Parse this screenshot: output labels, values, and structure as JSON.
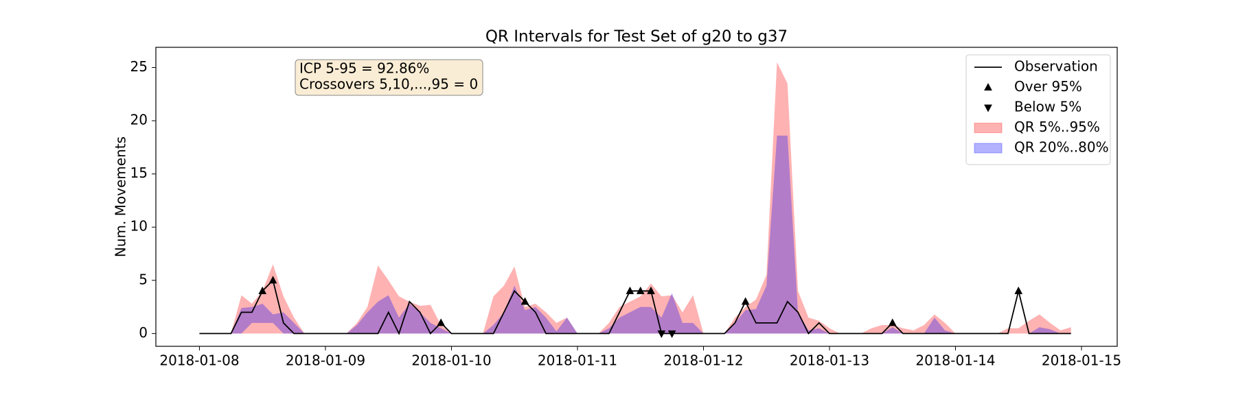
{
  "chart_data": {
    "type": "line",
    "title": "QR Intervals for Test Set of g20 to g37",
    "ylabel": "Num. Movements",
    "annotation": [
      "ICP 5-95 = 92.86%",
      "Crossovers 5,10,...,95 = 0"
    ],
    "legend": "upper right",
    "xlim": [
      -8.3,
      174.8
    ],
    "xticks": [
      {
        "value": 0,
        "label": "2018-01-08"
      },
      {
        "value": 24,
        "label": "2018-01-09"
      },
      {
        "value": 48,
        "label": "2018-01-10"
      },
      {
        "value": 72,
        "label": "2018-01-11"
      },
      {
        "value": 96,
        "label": "2018-01-12"
      },
      {
        "value": 120,
        "label": "2018-01-13"
      },
      {
        "value": 144,
        "label": "2018-01-14"
      },
      {
        "value": 168,
        "label": "2018-01-15"
      }
    ],
    "ylim": [
      -1.2,
      26.9
    ],
    "yticks": [
      0,
      5,
      10,
      15,
      20,
      25
    ],
    "x": [
      0,
      2,
      4,
      6,
      8,
      10,
      12,
      14,
      16,
      18,
      20,
      22,
      24,
      26,
      28,
      30,
      32,
      34,
      36,
      38,
      40,
      42,
      44,
      46,
      48,
      50,
      52,
      54,
      56,
      58,
      60,
      62,
      64,
      66,
      68,
      70,
      72,
      74,
      76,
      78,
      80,
      82,
      84,
      86,
      88,
      90,
      92,
      94,
      96,
      98,
      100,
      102,
      104,
      106,
      108,
      110,
      112,
      114,
      116,
      118,
      120,
      122,
      124,
      126,
      128,
      130,
      132,
      134,
      136,
      138,
      140,
      142,
      144,
      146,
      148,
      150,
      152,
      154,
      156,
      158,
      160,
      162,
      164,
      166
    ],
    "series": [
      {
        "name": "Observation",
        "kind": "line",
        "color": "#000000",
        "values": [
          0,
          0,
          0,
          0,
          2,
          2,
          4,
          5,
          1,
          0,
          0,
          0,
          0,
          0,
          0,
          0,
          0,
          0,
          2,
          0,
          3,
          2,
          0,
          1,
          0,
          0,
          0,
          0,
          0,
          2,
          4,
          3,
          2,
          0,
          0,
          0,
          0,
          0,
          0,
          0,
          2,
          4,
          4,
          4,
          0,
          0,
          0,
          0,
          0,
          0,
          0,
          1,
          3,
          1,
          1,
          1,
          3,
          2,
          0,
          1,
          0,
          0,
          0,
          0,
          0,
          0,
          1,
          0,
          0,
          0,
          0,
          0,
          0,
          0,
          0,
          0,
          0,
          0,
          4,
          0,
          0,
          0,
          0,
          0
        ]
      },
      {
        "name": "Over 95%",
        "kind": "marker",
        "marker": "up",
        "color": "#000000",
        "x": [
          12,
          14,
          46,
          62,
          82,
          84,
          86,
          104,
          132,
          156
        ],
        "values": [
          4,
          5,
          1,
          3,
          4,
          4,
          4,
          3,
          1,
          4
        ]
      },
      {
        "name": "Below 5%",
        "kind": "marker",
        "marker": "down",
        "color": "#000000",
        "x": [
          88,
          90
        ],
        "values": [
          0,
          0
        ]
      },
      {
        "name": "QR 5%..95%",
        "kind": "band",
        "color": "#ff0000",
        "opacity": 0.3,
        "lower": [
          0,
          0,
          0,
          0,
          0,
          0,
          0,
          0,
          0,
          0,
          0,
          0,
          0,
          0,
          0,
          0,
          0,
          0,
          0,
          0,
          0,
          0,
          0,
          0,
          0,
          0,
          0,
          0,
          0,
          0,
          0,
          0,
          0,
          0,
          0,
          0,
          0,
          0,
          0,
          0,
          0,
          0,
          0,
          0,
          0,
          0,
          0,
          0,
          0,
          0,
          0,
          0,
          0,
          0,
          0,
          0,
          0,
          0,
          0,
          0,
          0,
          0,
          0,
          0,
          0,
          0,
          0,
          0,
          0,
          0,
          0,
          0,
          0,
          0,
          0,
          0,
          0,
          0,
          0,
          0,
          0,
          0,
          0,
          0
        ],
        "upper": [
          0,
          0,
          0,
          0,
          3.6,
          2.8,
          4,
          6.5,
          3.5,
          1.5,
          0,
          0,
          0,
          0,
          0,
          1,
          2.5,
          6.4,
          5,
          3.5,
          3,
          2.6,
          2.7,
          0.8,
          0,
          0,
          0,
          0,
          3.5,
          4.5,
          6.3,
          2.5,
          2.8,
          2,
          1,
          1.5,
          0,
          0,
          0,
          1,
          2.5,
          3,
          3.5,
          4.7,
          3.5,
          3.6,
          2,
          3.6,
          0,
          0,
          0,
          1.5,
          2.5,
          3.2,
          5.5,
          25.5,
          23.5,
          4,
          1.5,
          1.2,
          0.5,
          0,
          0,
          0,
          0.5,
          0.8,
          0.8,
          0.5,
          0.3,
          0.8,
          1.8,
          1,
          0,
          0,
          0,
          0,
          0,
          0.5,
          0.5,
          1.2,
          1.8,
          1,
          0.3,
          0.6
        ]
      },
      {
        "name": "QR 20%..80%",
        "kind": "band",
        "color": "#0000ff",
        "opacity": 0.3,
        "lower": [
          0,
          0,
          0,
          0,
          0,
          1,
          1,
          1,
          0,
          0,
          0,
          0,
          0,
          0,
          0,
          0,
          0,
          0,
          0,
          0,
          0,
          0,
          0,
          0,
          0,
          0,
          0,
          0,
          0,
          0,
          0,
          0,
          0,
          0,
          0,
          0,
          0,
          0,
          0,
          0,
          0,
          0,
          0,
          0,
          0,
          0,
          0,
          0,
          0,
          0,
          0,
          0,
          0,
          0,
          0,
          0,
          0,
          0,
          0,
          0,
          0,
          0,
          0,
          0,
          0,
          0,
          0,
          0,
          0,
          0,
          0,
          0,
          0,
          0,
          0,
          0,
          0,
          0,
          0,
          0,
          0,
          0,
          0,
          0
        ],
        "upper": [
          0,
          0,
          0,
          0,
          2.4,
          2.5,
          2.8,
          1.8,
          2,
          1,
          0,
          0,
          0,
          0,
          0,
          0.8,
          2,
          3,
          3.6,
          1.5,
          2.8,
          2,
          1,
          0.5,
          0,
          0,
          0,
          0,
          0.8,
          2,
          4.5,
          2.2,
          2.5,
          1.5,
          0.2,
          1.5,
          0,
          0,
          0,
          0.5,
          1.5,
          2,
          2.5,
          2.5,
          1.5,
          3.8,
          1,
          1,
          0,
          0,
          0,
          1,
          2.2,
          2.3,
          4.5,
          18.6,
          18.6,
          2,
          0.3,
          0.5,
          0,
          0,
          0,
          0,
          0,
          0,
          0.6,
          0,
          0,
          0,
          1.5,
          0.3,
          0,
          0,
          0,
          0,
          0,
          0,
          0,
          0,
          0.6,
          0.4,
          0,
          0
        ]
      }
    ]
  }
}
